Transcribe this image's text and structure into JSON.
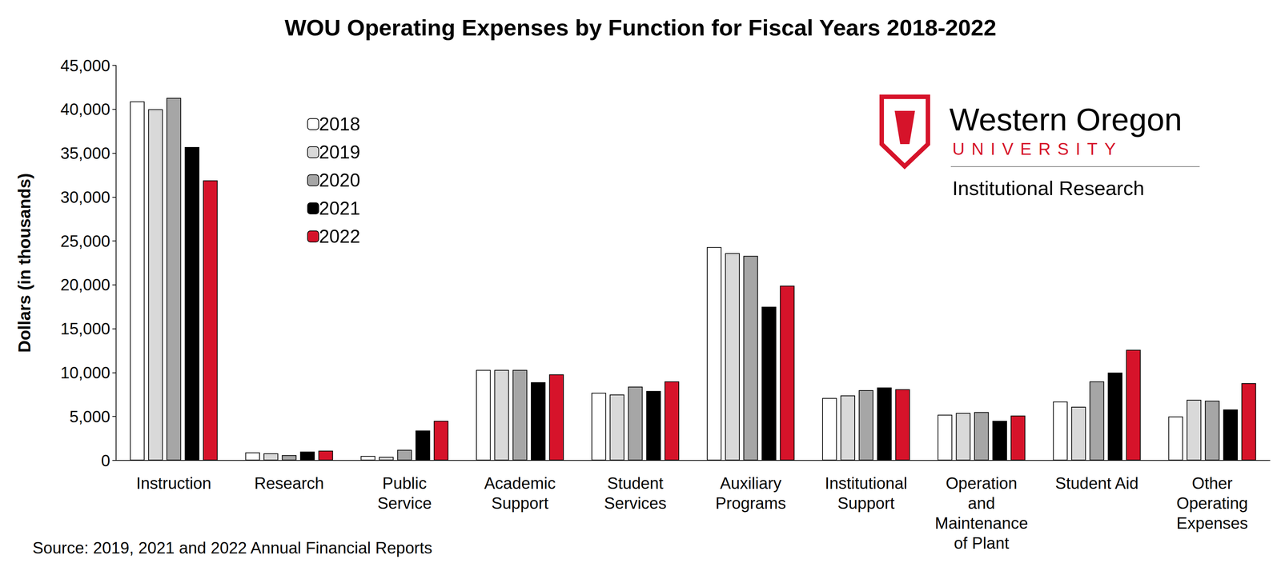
{
  "chart_data": {
    "type": "bar",
    "title": "WOU Operating Expenses by Function for Fiscal Years 2018-2022",
    "y_label": "Dollars (in thousands)",
    "categories": [
      "Instruction",
      "Research",
      "Public\nService",
      "Academic\nSupport",
      "Student\nServices",
      "Auxiliary\nPrograms",
      "Institutional\nSupport",
      "Operation\nand\nMaintenance\nof Plant",
      "Student Aid",
      "Other\nOperating\nExpenses"
    ],
    "series": [
      {
        "name": "2018",
        "color": "#ffffff",
        "values": [
          40900,
          900,
          500,
          10300,
          7700,
          24300,
          7100,
          5200,
          6700,
          5000
        ]
      },
      {
        "name": "2019",
        "color": "#d9d9d9",
        "values": [
          40000,
          800,
          400,
          10300,
          7500,
          23600,
          7400,
          5400,
          6100,
          6900
        ]
      },
      {
        "name": "2020",
        "color": "#a6a6a6",
        "values": [
          41300,
          600,
          1200,
          10300,
          8400,
          23300,
          8000,
          5500,
          9000,
          6800
        ]
      },
      {
        "name": "2021",
        "color": "#000000",
        "values": [
          35700,
          1000,
          3400,
          8900,
          7900,
          17500,
          8300,
          4500,
          10000,
          5800
        ]
      },
      {
        "name": "2022",
        "color": "#d6132a",
        "values": [
          31900,
          1100,
          4500,
          9800,
          9000,
          19900,
          8100,
          5100,
          12600,
          8800
        ]
      }
    ],
    "ylim": [
      0,
      45000
    ],
    "yticks": [
      0,
      {
        "value": 5000,
        "label": "5,000"
      },
      {
        "value": 10000,
        "label": "10,000"
      },
      {
        "value": 15000,
        "label": "15,000"
      },
      {
        "value": 20000,
        "label": "20,000"
      },
      {
        "value": 25000,
        "label": "25,000"
      },
      {
        "value": 30000,
        "label": "30,000"
      },
      {
        "value": 35000,
        "label": "35,000"
      },
      {
        "value": 40000,
        "label": "40,000"
      },
      {
        "value": 45000,
        "label": "45,000"
      }
    ],
    "grid": false,
    "legend": "upper left",
    "annotations": [
      "Western Oregon",
      "UNIVERSITY",
      "Institutional Research",
      "Source: 2019, 2021 and 2022 Annual Financial Reports"
    ]
  }
}
